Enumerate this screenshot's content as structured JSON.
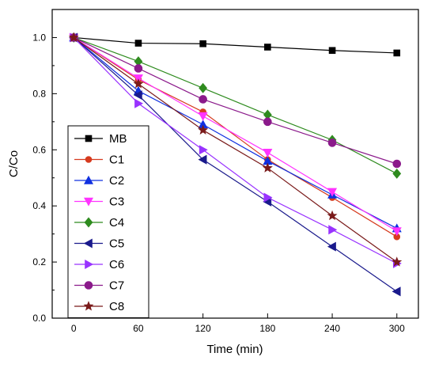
{
  "chart_data": {
    "type": "line",
    "xlabel": "Time (min)",
    "ylabel": "C/Co",
    "x": [
      0,
      60,
      120,
      180,
      240,
      300
    ],
    "xticks": [
      "0",
      "60",
      "120",
      "180",
      "240",
      "300"
    ],
    "xlim": [
      -20,
      320
    ],
    "ylim": [
      0.0,
      1.1
    ],
    "yticks": [
      "0.0",
      "0.2",
      "0.4",
      "0.6",
      "0.8",
      "1.0"
    ],
    "grid": false,
    "legend_position": "left",
    "series": [
      {
        "name": "MB",
        "color": "#000000",
        "marker": "square",
        "values": [
          1.0,
          0.98,
          0.978,
          0.966,
          0.954,
          0.945
        ]
      },
      {
        "name": "C1",
        "color": "#d63a1e",
        "marker": "circle-star",
        "values": [
          1.0,
          0.85,
          0.735,
          0.565,
          0.43,
          0.29
        ]
      },
      {
        "name": "C2",
        "color": "#1030e0",
        "marker": "triangle-up",
        "values": [
          1.0,
          0.81,
          0.69,
          0.56,
          0.44,
          0.32
        ]
      },
      {
        "name": "C3",
        "color": "#ff33ff",
        "marker": "triangle-down",
        "values": [
          1.0,
          0.855,
          0.72,
          0.59,
          0.45,
          0.31
        ]
      },
      {
        "name": "C4",
        "color": "#2e8b1e",
        "marker": "diamond",
        "values": [
          1.0,
          0.915,
          0.82,
          0.725,
          0.635,
          0.515
        ]
      },
      {
        "name": "C5",
        "color": "#1a1a8c",
        "marker": "triangle-left",
        "values": [
          1.0,
          0.795,
          0.565,
          0.415,
          0.255,
          0.095
        ]
      },
      {
        "name": "C6",
        "color": "#9933ff",
        "marker": "triangle-right",
        "values": [
          1.0,
          0.765,
          0.6,
          0.43,
          0.315,
          0.195
        ]
      },
      {
        "name": "C7",
        "color": "#8b1a8b",
        "marker": "circle",
        "values": [
          1.0,
          0.89,
          0.78,
          0.7,
          0.625,
          0.55
        ]
      },
      {
        "name": "C8",
        "color": "#7a1a1a",
        "marker": "star",
        "values": [
          1.0,
          0.835,
          0.67,
          0.535,
          0.365,
          0.2
        ]
      }
    ]
  }
}
